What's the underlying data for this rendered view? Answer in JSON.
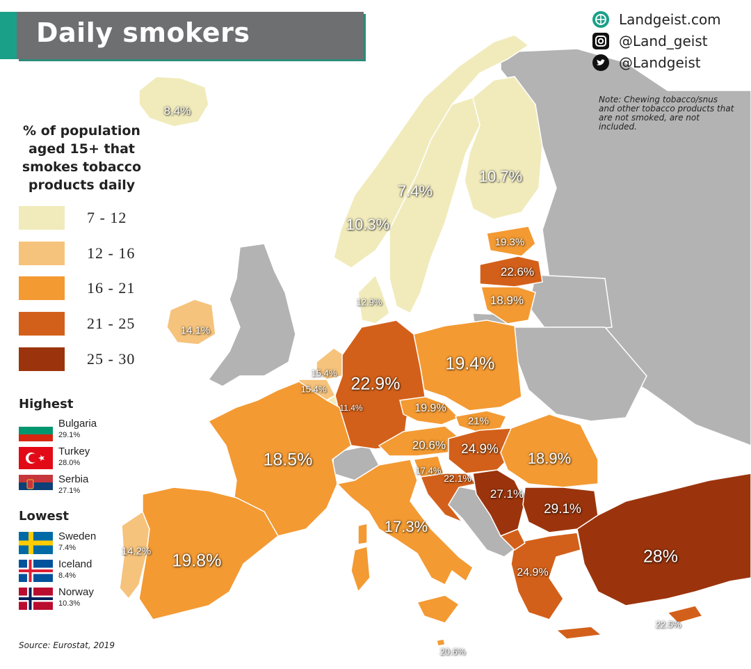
{
  "title": "Daily smokers",
  "social": {
    "website": "Landgeist.com",
    "instagram": "@Land_geist",
    "twitter": "@Landgeist"
  },
  "note": "Note: Chewing tobacco/snus and other tobacco products that are not smoked, are not included.",
  "legend": {
    "title": "% of population aged 15+ that smokes tobacco products daily",
    "bins": [
      {
        "label": "7 - 12",
        "color": "#f1ebbc"
      },
      {
        "label": "12 - 16",
        "color": "#f6c37c"
      },
      {
        "label": "16 - 21",
        "color": "#f39a33"
      },
      {
        "label": "21 - 25",
        "color": "#d3601a"
      },
      {
        "label": "25 - 30",
        "color": "#9b340c"
      }
    ]
  },
  "no_data_color": "#b3b3b3",
  "highest": {
    "title": "Highest",
    "items": [
      {
        "name": "Bulgaria",
        "value": "29.1%",
        "flag": "bulgaria-flag"
      },
      {
        "name": "Turkey",
        "value": "28.0%",
        "flag": "turkey-flag"
      },
      {
        "name": "Serbia",
        "value": "27.1%",
        "flag": "serbia-flag"
      }
    ]
  },
  "lowest": {
    "title": "Lowest",
    "items": [
      {
        "name": "Sweden",
        "value": "7.4%",
        "flag": "sweden-flag"
      },
      {
        "name": "Iceland",
        "value": "8.4%",
        "flag": "iceland-flag"
      },
      {
        "name": "Norway",
        "value": "10.3%",
        "flag": "norway-flag"
      }
    ]
  },
  "source": "Source: Eurostat, 2019",
  "map_labels": [
    {
      "id": "iceland",
      "text": "8.4%"
    },
    {
      "id": "sweden",
      "text": "7.4%"
    },
    {
      "id": "finland",
      "text": "10.7%"
    },
    {
      "id": "norway",
      "text": "10.3%"
    },
    {
      "id": "estonia",
      "text": "19.3%"
    },
    {
      "id": "latvia",
      "text": "22.6%"
    },
    {
      "id": "lithuania",
      "text": "18.9%"
    },
    {
      "id": "denmark",
      "text": "12.9%"
    },
    {
      "id": "ireland",
      "text": "14.1%"
    },
    {
      "id": "netherlands",
      "text": "15.4%"
    },
    {
      "id": "belgium",
      "text": "15.4%"
    },
    {
      "id": "luxembourg",
      "text": "11.4%"
    },
    {
      "id": "germany",
      "text": "22.9%"
    },
    {
      "id": "poland",
      "text": "19.4%"
    },
    {
      "id": "czechia",
      "text": "19.9%"
    },
    {
      "id": "slovakia",
      "text": "21%"
    },
    {
      "id": "austria",
      "text": "20.6%"
    },
    {
      "id": "hungary",
      "text": "24.9%"
    },
    {
      "id": "romania",
      "text": "18.9%"
    },
    {
      "id": "france",
      "text": "18.5%"
    },
    {
      "id": "slovenia",
      "text": "17.4%"
    },
    {
      "id": "croatia",
      "text": "22.1%"
    },
    {
      "id": "serbia",
      "text": "27.1%"
    },
    {
      "id": "bulgaria",
      "text": "29.1%"
    },
    {
      "id": "italy",
      "text": "17.3%"
    },
    {
      "id": "portugal",
      "text": "14.2%"
    },
    {
      "id": "spain",
      "text": "19.8%"
    },
    {
      "id": "greece",
      "text": "24.9%"
    },
    {
      "id": "turkey",
      "text": "28%"
    },
    {
      "id": "cyprus",
      "text": "22.5%"
    },
    {
      "id": "malta",
      "text": "20.6%"
    }
  ]
}
